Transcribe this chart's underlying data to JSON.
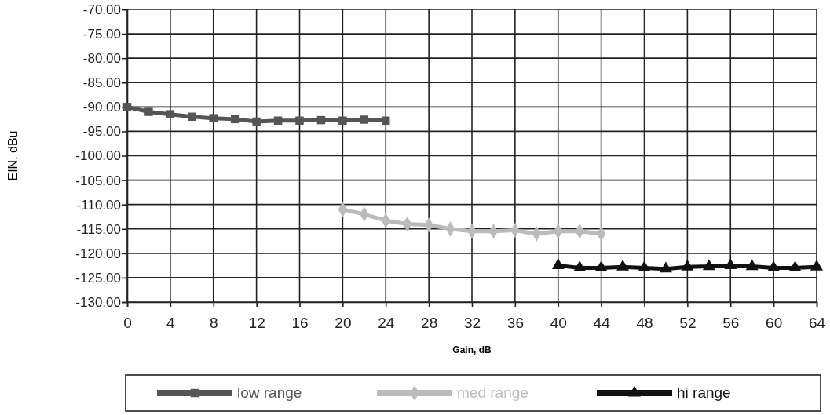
{
  "chart_data": {
    "type": "line",
    "xlabel": "Gain, dB",
    "ylabel": "EIN, dBu",
    "xlim": [
      0,
      64
    ],
    "xticks": [
      0,
      4,
      8,
      12,
      16,
      20,
      24,
      28,
      32,
      36,
      40,
      44,
      48,
      52,
      56,
      60,
      64
    ],
    "ylim": [
      -130,
      -70
    ],
    "yticks": [
      {
        "value": -70,
        "label": "-70.00"
      },
      {
        "value": -75,
        "label": "-75.00"
      },
      {
        "value": -80,
        "label": "-80.00"
      },
      {
        "value": -85,
        "label": "-85.00"
      },
      {
        "value": -90,
        "label": "-90.00"
      },
      {
        "value": -95,
        "label": "-95.00"
      },
      {
        "value": -100,
        "label": "-100.00"
      },
      {
        "value": -105,
        "label": "-105.00"
      },
      {
        "value": -110,
        "label": "-110.00"
      },
      {
        "value": -115,
        "label": "-115.00"
      },
      {
        "value": -120,
        "label": "-120.00"
      },
      {
        "value": -125,
        "label": "-125.00"
      },
      {
        "value": -130,
        "label": "-130.00"
      }
    ],
    "grid": true,
    "legend": "bottom",
    "line_style": "solid",
    "series": [
      {
        "name": "low range",
        "color": "#555555",
        "marker": "square",
        "x": [
          0,
          2,
          4,
          6,
          8,
          10,
          12,
          14,
          16,
          18,
          20,
          22,
          24
        ],
        "values": [
          -90,
          -91,
          -91.5,
          -92,
          -92.3,
          -92.5,
          -93,
          -92.8,
          -92.8,
          -92.7,
          -92.8,
          -92.6,
          -92.8
        ]
      },
      {
        "name": "med range",
        "color": "#bbbbbb",
        "marker": "diamond",
        "x": [
          20,
          22,
          24,
          26,
          28,
          30,
          32,
          34,
          36,
          38,
          40,
          42,
          44
        ],
        "values": [
          -111,
          -112,
          -113.3,
          -114,
          -114.2,
          -115,
          -115.5,
          -115.5,
          -115.3,
          -116,
          -115.5,
          -115.5,
          -116
        ]
      },
      {
        "name": "hi range",
        "color": "#111111",
        "marker": "triangle",
        "x": [
          40,
          42,
          44,
          46,
          48,
          50,
          52,
          54,
          56,
          58,
          60,
          62,
          64
        ],
        "values": [
          -122.5,
          -123,
          -123,
          -122.8,
          -123,
          -123.2,
          -122.8,
          -122.7,
          -122.5,
          -122.7,
          -123,
          -123,
          -122.8
        ]
      }
    ]
  }
}
